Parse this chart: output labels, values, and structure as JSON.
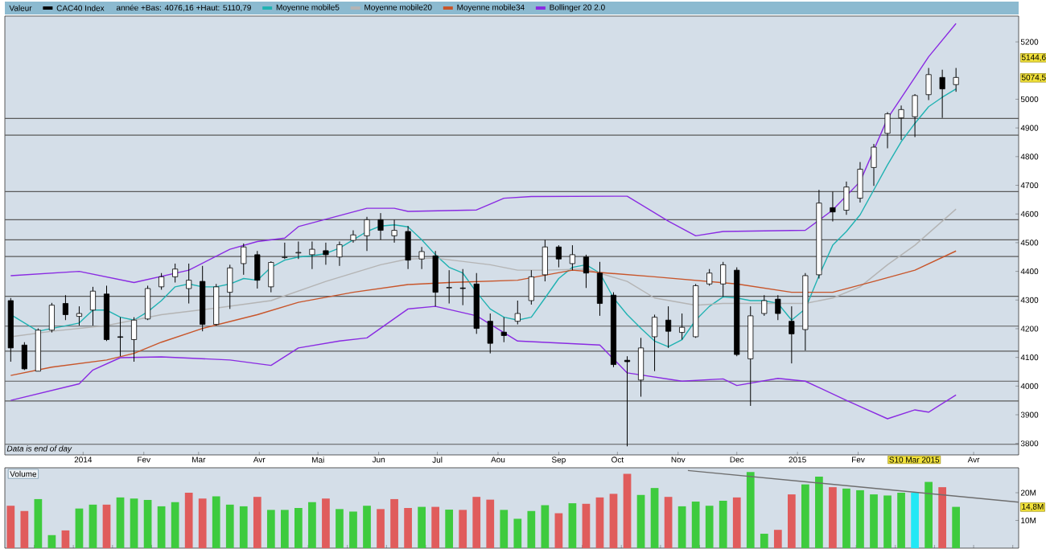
{
  "chart_data": [
    {
      "type": "candlestick",
      "legend": "top",
      "legend_title": "Valeur",
      "x": [
        "2013-11-25",
        "2013-12-02",
        "2013-12-09",
        "2013-12-16",
        "2013-12-23",
        "2013-12-30",
        "2014-01-06",
        "2014-01-13",
        "2014-01-20",
        "2014-01-27",
        "2014-02-03",
        "2014-02-10",
        "2014-02-17",
        "2014-02-24",
        "2014-03-03",
        "2014-03-10",
        "2014-03-17",
        "2014-03-24",
        "2014-03-31",
        "2014-04-07",
        "2014-04-14",
        "2014-04-21",
        "2014-04-28",
        "2014-05-05",
        "2014-05-12",
        "2014-05-19",
        "2014-05-26",
        "2014-06-02",
        "2014-06-09",
        "2014-06-16",
        "2014-06-23",
        "2014-06-30",
        "2014-07-07",
        "2014-07-14",
        "2014-07-21",
        "2014-07-28",
        "2014-08-04",
        "2014-08-11",
        "2014-08-18",
        "2014-08-25",
        "2014-09-01",
        "2014-09-08",
        "2014-09-15",
        "2014-09-22",
        "2014-09-29",
        "2014-10-06",
        "2014-10-13",
        "2014-10-20",
        "2014-10-27",
        "2014-11-03",
        "2014-11-10",
        "2014-11-17",
        "2014-11-24",
        "2014-12-01",
        "2014-12-08",
        "2014-12-15",
        "2014-12-22",
        "2014-12-29",
        "2015-01-05",
        "2015-01-12",
        "2015-01-19",
        "2015-01-26",
        "2015-02-02",
        "2015-02-09",
        "2015-02-16",
        "2015-02-23",
        "2015-03-02",
        "2015-03-09",
        "2015-03-16",
        "2015-03-23"
      ],
      "series": [
        {
          "name": "CAC40 Index",
          "type": "candlestick",
          "color": "#000000",
          "ohlc": [
            [
              4298,
              4307,
              4085,
              4133
            ],
            [
              4143,
              4153,
              4056,
              4060
            ],
            [
              4052,
              4201,
              4052,
              4195
            ],
            [
              4195,
              4290,
              4187,
              4282
            ],
            [
              4288,
              4317,
              4230,
              4249
            ],
            [
              4243,
              4278,
              4211,
              4253
            ],
            [
              4265,
              4346,
              4211,
              4331
            ],
            [
              4321,
              4350,
              4157,
              4162
            ],
            [
              4172,
              4240,
              4104,
              4170
            ],
            [
              4162,
              4240,
              4085,
              4230
            ],
            [
              4234,
              4350,
              4230,
              4340
            ],
            [
              4346,
              4394,
              4336,
              4381
            ],
            [
              4381,
              4427,
              4361,
              4408
            ],
            [
              4340,
              4427,
              4288,
              4369
            ],
            [
              4365,
              4419,
              4191,
              4215
            ],
            [
              4215,
              4356,
              4211,
              4346
            ],
            [
              4327,
              4423,
              4269,
              4412
            ],
            [
              4427,
              4497,
              4388,
              4485
            ],
            [
              4458,
              4471,
              4340,
              4369
            ],
            [
              4346,
              4435,
              4327,
              4431
            ],
            [
              4448,
              4500,
              4443,
              4450
            ],
            [
              4464,
              4504,
              4443,
              4466
            ],
            [
              4458,
              4504,
              4408,
              4477
            ],
            [
              4472,
              4500,
              4423,
              4458
            ],
            [
              4450,
              4504,
              4419,
              4493
            ],
            [
              4508,
              4543,
              4500,
              4527
            ],
            [
              4524,
              4590,
              4471,
              4580
            ],
            [
              4580,
              4603,
              4510,
              4543
            ],
            [
              4524,
              4580,
              4500,
              4543
            ],
            [
              4539,
              4558,
              4408,
              4439
            ],
            [
              4443,
              4485,
              4408,
              4469
            ],
            [
              4454,
              4471,
              4278,
              4327
            ],
            [
              4342,
              4404,
              4288,
              4344
            ],
            [
              4342,
              4408,
              4282,
              4340
            ],
            [
              4356,
              4394,
              4182,
              4201
            ],
            [
              4226,
              4253,
              4114,
              4149
            ],
            [
              4188,
              4240,
              4153,
              4176
            ],
            [
              4226,
              4298,
              4215,
              4253
            ],
            [
              4298,
              4404,
              4284,
              4381
            ],
            [
              4388,
              4510,
              4365,
              4485
            ],
            [
              4485,
              4491,
              4414,
              4443
            ],
            [
              4427,
              4491,
              4404,
              4458
            ],
            [
              4450,
              4458,
              4342,
              4394
            ],
            [
              4394,
              4433,
              4245,
              4288
            ],
            [
              4317,
              4327,
              4066,
              4075
            ],
            [
              4090,
              4104,
              3790,
              4085
            ],
            [
              4021,
              4168,
              3963,
              4133
            ],
            [
              4172,
              4249,
              4052,
              4240
            ],
            [
              4230,
              4278,
              4133,
              4191
            ],
            [
              4187,
              4253,
              4162,
              4205
            ],
            [
              4172,
              4356,
              4168,
              4350
            ],
            [
              4356,
              4408,
              4350,
              4394
            ],
            [
              4356,
              4433,
              4311,
              4423
            ],
            [
              4404,
              4414,
              4104,
              4110
            ],
            [
              4095,
              4278,
              3931,
              4245
            ],
            [
              4253,
              4317,
              4245,
              4298
            ],
            [
              4303,
              4317,
              4230,
              4253
            ],
            [
              4226,
              4278,
              4079,
              4182
            ],
            [
              4197,
              4394,
              4124,
              4385
            ],
            [
              4388,
              4684,
              4375,
              4638
            ],
            [
              4622,
              4678,
              4574,
              4607
            ],
            [
              4613,
              4713,
              4597,
              4694
            ],
            [
              4655,
              4781,
              4640,
              4756
            ],
            [
              4762,
              4844,
              4698,
              4833
            ],
            [
              4881,
              4955,
              4829,
              4949
            ],
            [
              4935,
              4978,
              4858,
              4964
            ],
            [
              4939,
              5018,
              4868,
              5013
            ],
            [
              5016,
              5109,
              4997,
              5086
            ],
            [
              5076,
              5103,
              4935,
              5036
            ],
            [
              5051,
              5109,
              5026,
              5076
            ]
          ]
        },
        {
          "name": "Moyenne mobile5",
          "type": "line",
          "color": "#20b2b2",
          "values": [
            4249,
            4220,
            4191,
            4201,
            4210,
            4220,
            4265,
            4265,
            4240,
            4230,
            4259,
            4298,
            4346,
            4356,
            4346,
            4346,
            4356,
            4375,
            4369,
            4414,
            4439,
            4450,
            4454,
            4462,
            4481,
            4510,
            4539,
            4558,
            4562,
            4555,
            4510,
            4458,
            4414,
            4394,
            4327,
            4269,
            4240,
            4230,
            4240,
            4307,
            4375,
            4414,
            4423,
            4394,
            4307,
            4249,
            4201,
            4157,
            4137,
            4162,
            4230,
            4278,
            4311,
            4307,
            4298,
            4298,
            4288,
            4230,
            4269,
            4385,
            4491,
            4539,
            4597,
            4684,
            4771,
            4852,
            4916,
            4974,
            5007,
            5036
          ]
        },
        {
          "name": "Moyenne mobile20",
          "type": "line",
          "color": "#b4b4b4",
          "x": [
            "2013-11-25",
            "2013-12-16",
            "2014-01-13",
            "2014-02-10",
            "2014-03-10",
            "2014-04-07",
            "2014-05-05",
            "2014-06-02",
            "2014-06-16",
            "2014-06-30",
            "2014-07-28",
            "2014-08-11",
            "2014-08-25",
            "2014-09-15",
            "2014-10-06",
            "2014-10-20",
            "2014-11-10",
            "2014-11-24",
            "2014-12-15",
            "2015-01-05",
            "2015-01-19",
            "2015-02-02",
            "2015-02-16",
            "2015-03-02",
            "2015-03-23"
          ],
          "values": [
            4172,
            4191,
            4211,
            4249,
            4272,
            4298,
            4365,
            4423,
            4443,
            4446,
            4423,
            4404,
            4404,
            4408,
            4365,
            4307,
            4282,
            4288,
            4288,
            4288,
            4307,
            4346,
            4423,
            4491,
            4617
          ]
        },
        {
          "name": "Moyenne mobile34",
          "type": "line",
          "color": "#c8552a",
          "x": [
            "2013-11-25",
            "2013-12-16",
            "2014-01-13",
            "2014-01-27",
            "2014-02-10",
            "2014-03-03",
            "2014-03-31",
            "2014-04-21",
            "2014-05-19",
            "2014-06-16",
            "2014-07-07",
            "2014-08-11",
            "2014-09-08",
            "2014-09-22",
            "2014-10-20",
            "2014-12-01",
            "2014-12-29",
            "2015-01-19",
            "2015-02-09",
            "2015-03-02",
            "2015-03-23"
          ],
          "values": [
            4037,
            4066,
            4091,
            4114,
            4153,
            4201,
            4249,
            4292,
            4327,
            4354,
            4361,
            4369,
            4404,
            4396,
            4381,
            4356,
            4327,
            4327,
            4365,
            4404,
            4471
          ]
        },
        {
          "name": "Bollinger 20 2.0",
          "type": "line",
          "color": "#8a2be2",
          "x": [
            "2013-11-25",
            "2013-12-30",
            "2014-01-27",
            "2014-02-24",
            "2014-03-17",
            "2014-03-31",
            "2014-04-14",
            "2014-04-21",
            "2014-05-26",
            "2014-06-09",
            "2014-06-16",
            "2014-07-21",
            "2014-08-04",
            "2014-08-18",
            "2014-10-06",
            "2014-10-27",
            "2014-11-10",
            "2014-11-24",
            "2015-01-05",
            "2015-01-19",
            "2015-02-02",
            "2015-02-16",
            "2015-03-09",
            "2015-03-23"
          ],
          "values": [
            4385,
            4400,
            4361,
            4404,
            4477,
            4504,
            4516,
            4556,
            4620,
            4620,
            4609,
            4614,
            4655,
            4661,
            4662,
            4575,
            4524,
            4539,
            4543,
            4614,
            4713,
            4933,
            5148,
            5264
          ]
        },
        {
          "type": "line",
          "color": "#8a2be2",
          "x": [
            "2013-11-25",
            "2013-12-30",
            "2014-01-06",
            "2014-01-20",
            "2014-02-10",
            "2014-03-17",
            "2014-04-07",
            "2014-04-21",
            "2014-05-12",
            "2014-05-26",
            "2014-06-16",
            "2014-06-30",
            "2014-07-21",
            "2014-08-11",
            "2014-09-22",
            "2014-10-06",
            "2014-11-03",
            "2014-11-24",
            "2014-12-01",
            "2014-12-22",
            "2015-01-05",
            "2015-01-26",
            "2015-02-16",
            "2015-03-02",
            "2015-03-09",
            "2015-03-23"
          ],
          "values": [
            3950,
            4008,
            4056,
            4099,
            4102,
            4091,
            4072,
            4133,
            4157,
            4168,
            4269,
            4278,
            4245,
            4157,
            4143,
            4046,
            4017,
            4025,
            4002,
            4027,
            4017,
            3950,
            3886,
            3917,
            3909,
            3969
          ]
        }
      ],
      "xlim": [
        "2013-11-22",
        "2015-04-24"
      ],
      "ylim": [
        3760,
        5290
      ],
      "xticks": [
        {
          "value": "2014-01-01",
          "label": "2014"
        },
        {
          "value": "2014-02-01",
          "label": "Fev"
        },
        {
          "value": "2014-03-01",
          "label": "Mar"
        },
        {
          "value": "2014-04-01",
          "label": "Avr"
        },
        {
          "value": "2014-05-01",
          "label": "Mai"
        },
        {
          "value": "2014-06-01",
          "label": "Jun"
        },
        {
          "value": "2014-07-01",
          "label": "Jul"
        },
        {
          "value": "2014-08-01",
          "label": "Aou"
        },
        {
          "value": "2014-09-01",
          "label": "Sep"
        },
        {
          "value": "2014-10-01",
          "label": "Oct"
        },
        {
          "value": "2014-11-01",
          "label": "Nov"
        },
        {
          "value": "2014-12-01",
          "label": "Dec"
        },
        {
          "value": "2015-01-01",
          "label": "2015"
        },
        {
          "value": "2015-02-01",
          "label": "Fev"
        },
        {
          "value": "2015-04-01",
          "label": "Avr"
        }
      ],
      "yticks": [
        3800,
        3900,
        4000,
        4100,
        4200,
        4300,
        4400,
        4500,
        4600,
        4700,
        4800,
        4900,
        5000,
        5200
      ],
      "ref_lines": [
        {
          "axis": "y",
          "value": 4933,
          "color": "#5a5a5a"
        },
        {
          "axis": "y",
          "value": 4875,
          "color": "#5a5a5a"
        },
        {
          "axis": "y",
          "value": 4678,
          "color": "#5a5a5a"
        },
        {
          "axis": "y",
          "value": 4580,
          "color": "#5a5a5a"
        },
        {
          "axis": "y",
          "value": 4510,
          "color": "#5a5a5a"
        },
        {
          "axis": "y",
          "value": 4452,
          "color": "#5a5a5a"
        },
        {
          "axis": "y",
          "value": 4313,
          "color": "#5a5a5a"
        },
        {
          "axis": "y",
          "value": 4209,
          "color": "#5a5a5a"
        },
        {
          "axis": "y",
          "value": 4122,
          "color": "#5a5a5a"
        },
        {
          "axis": "y",
          "value": 4017,
          "color": "#5a5a5a"
        },
        {
          "axis": "y",
          "value": 3948,
          "color": "#5a5a5a"
        },
        {
          "axis": "y",
          "value": 3797,
          "color": "#5a5a5a"
        }
      ],
      "annotations": [
        "année +Bas: 4076,16 +Haut: 5110,79",
        "Data is end of day",
        "S10 Mar 2015",
        {
          "text": "5144,6",
          "y": 5144.6
        },
        {
          "text": "5074,5",
          "y": 5074.5
        }
      ]
    },
    {
      "type": "bar",
      "title": "Volume",
      "tick_labels": "y",
      "x": [
        "2013-11-25",
        "2013-12-02",
        "2013-12-09",
        "2013-12-16",
        "2013-12-23",
        "2013-12-30",
        "2014-01-06",
        "2014-01-13",
        "2014-01-20",
        "2014-01-27",
        "2014-02-03",
        "2014-02-10",
        "2014-02-17",
        "2014-02-24",
        "2014-03-03",
        "2014-03-10",
        "2014-03-17",
        "2014-03-24",
        "2014-03-31",
        "2014-04-07",
        "2014-04-14",
        "2014-04-21",
        "2014-04-28",
        "2014-05-05",
        "2014-05-12",
        "2014-05-19",
        "2014-05-26",
        "2014-06-02",
        "2014-06-09",
        "2014-06-16",
        "2014-06-23",
        "2014-06-30",
        "2014-07-07",
        "2014-07-14",
        "2014-07-21",
        "2014-07-28",
        "2014-08-04",
        "2014-08-11",
        "2014-08-18",
        "2014-08-25",
        "2014-09-01",
        "2014-09-08",
        "2014-09-15",
        "2014-09-22",
        "2014-09-29",
        "2014-10-06",
        "2014-10-13",
        "2014-10-20",
        "2014-10-27",
        "2014-11-03",
        "2014-11-10",
        "2014-11-17",
        "2014-11-24",
        "2014-12-01",
        "2014-12-08",
        "2014-12-15",
        "2014-12-22",
        "2014-12-29",
        "2015-01-05",
        "2015-01-12",
        "2015-01-19",
        "2015-01-26",
        "2015-02-02",
        "2015-02-09",
        "2015-02-16",
        "2015-02-23",
        "2015-03-02",
        "2015-03-09",
        "2015-03-16",
        "2015-03-23"
      ],
      "series": [
        {
          "values": [
            15.3,
            13.4,
            17.7,
            4.7,
            6.4,
            14.3,
            15.7,
            15.7,
            18.3,
            17.9,
            17.4,
            15.1,
            16.6,
            20,
            17.9,
            18.7,
            15.7,
            15.1,
            18.5,
            13.8,
            13.8,
            14.5,
            16.6,
            17.9,
            14.1,
            13.2,
            15.3,
            14.1,
            17.7,
            14.5,
            14.9,
            14.9,
            13.9,
            13.8,
            18.5,
            17.5,
            13.8,
            10.6,
            13.4,
            15.5,
            12.6,
            16.2,
            16,
            18.3,
            19.6,
            26.8,
            19.2,
            21.7,
            18.5,
            15.1,
            16.8,
            15.3,
            17.1,
            18.3,
            27.5,
            5.2,
            6.6,
            19.4,
            23,
            25.8,
            22,
            21.5,
            20.9,
            19.4,
            19,
            20,
            20,
            23.9,
            22,
            14.9
          ],
          "colors": [
            "#e05c5c",
            "#e05c5c",
            "#3ecb3e",
            "#3ecb3e",
            "#e05c5c",
            "#3ecb3e",
            "#3ecb3e",
            "#e05c5c",
            "#3ecb3e",
            "#3ecb3e",
            "#3ecb3e",
            "#3ecb3e",
            "#3ecb3e",
            "#e05c5c",
            "#e05c5c",
            "#3ecb3e",
            "#3ecb3e",
            "#3ecb3e",
            "#e05c5c",
            "#3ecb3e",
            "#3ecb3e",
            "#3ecb3e",
            "#3ecb3e",
            "#e05c5c",
            "#3ecb3e",
            "#3ecb3e",
            "#3ecb3e",
            "#e05c5c",
            "#e05c5c",
            "#e05c5c",
            "#3ecb3e",
            "#e05c5c",
            "#3ecb3e",
            "#e05c5c",
            "#e05c5c",
            "#e05c5c",
            "#3ecb3e",
            "#3ecb3e",
            "#3ecb3e",
            "#3ecb3e",
            "#e05c5c",
            "#3ecb3e",
            "#e05c5c",
            "#e05c5c",
            "#e05c5c",
            "#e05c5c",
            "#3ecb3e",
            "#3ecb3e",
            "#e05c5c",
            "#3ecb3e",
            "#3ecb3e",
            "#3ecb3e",
            "#3ecb3e",
            "#e05c5c",
            "#3ecb3e",
            "#3ecb3e",
            "#e05c5c",
            "#e05c5c",
            "#3ecb3e",
            "#3ecb3e",
            "#e05c5c",
            "#3ecb3e",
            "#3ecb3e",
            "#3ecb3e",
            "#3ecb3e",
            "#3ecb3e",
            "#22e8f5",
            "#3ecb3e",
            "#e05c5c",
            "#3ecb3e"
          ]
        },
        {
          "type": "line",
          "color": "#6e6e6e",
          "x": [
            "2014-11-06",
            "2015-04-24"
          ],
          "values": [
            28,
            16.6
          ]
        }
      ],
      "xlim": [
        "2013-11-22",
        "2015-04-24"
      ],
      "ylim": [
        0,
        29
      ],
      "yticks": [
        {
          "value": 10,
          "label": "10M"
        },
        {
          "value": 20,
          "label": "20M"
        }
      ],
      "annotations": [
        {
          "text": "14,8M",
          "y": 14.8
        }
      ]
    }
  ]
}
